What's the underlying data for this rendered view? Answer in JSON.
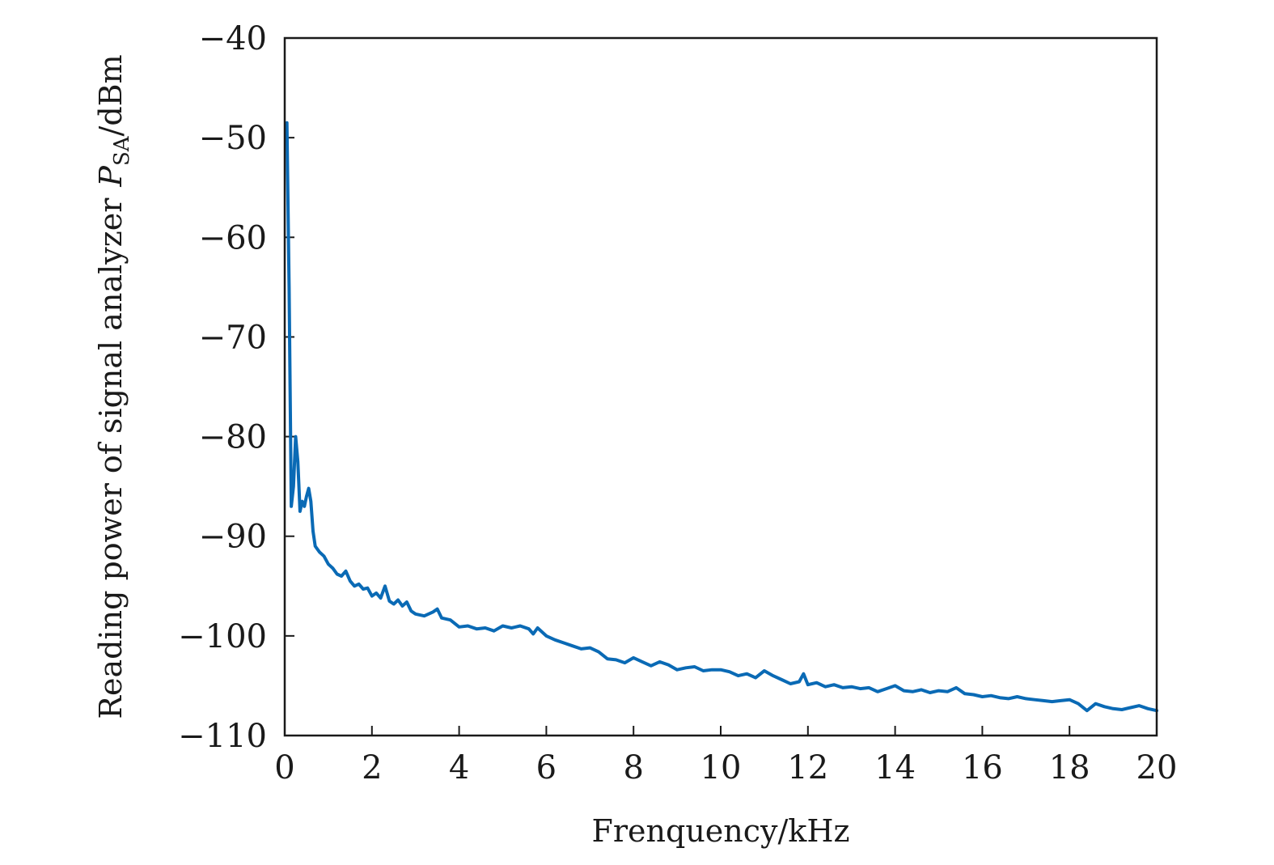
{
  "chart_data": {
    "type": "line",
    "title": "",
    "xlabel": "Frenquency/kHz",
    "ylabel": {
      "prefix": "Reading power of signal analyzer",
      "symbol": "P",
      "subscript": "SA",
      "unit": "/dBm"
    },
    "xlim": [
      0,
      20
    ],
    "ylim": [
      -110,
      -40
    ],
    "xticks": [
      0,
      2,
      4,
      6,
      8,
      10,
      12,
      14,
      16,
      18,
      20
    ],
    "yticks": [
      -40,
      -50,
      -60,
      -70,
      -80,
      -90,
      -100,
      -110
    ],
    "xtick_labels": [
      "0",
      "2",
      "4",
      "6",
      "8",
      "10",
      "12",
      "14",
      "16",
      "18",
      "20"
    ],
    "ytick_labels": [
      "−40",
      "−50",
      "−60",
      "−70",
      "−80",
      "−90",
      "−100",
      "−110"
    ],
    "grid": false,
    "series": [
      {
        "color": "#0a6ab5",
        "x": [
          0.05,
          0.1,
          0.15,
          0.2,
          0.25,
          0.3,
          0.35,
          0.4,
          0.45,
          0.5,
          0.55,
          0.6,
          0.65,
          0.7,
          0.8,
          0.9,
          1.0,
          1.1,
          1.2,
          1.3,
          1.4,
          1.5,
          1.6,
          1.7,
          1.8,
          1.9,
          2.0,
          2.1,
          2.2,
          2.3,
          2.4,
          2.5,
          2.6,
          2.7,
          2.8,
          2.9,
          3.0,
          3.2,
          3.4,
          3.5,
          3.6,
          3.8,
          4.0,
          4.2,
          4.4,
          4.6,
          4.8,
          5.0,
          5.2,
          5.4,
          5.6,
          5.7,
          5.8,
          6.0,
          6.2,
          6.4,
          6.6,
          6.8,
          7.0,
          7.2,
          7.4,
          7.6,
          7.8,
          8.0,
          8.2,
          8.4,
          8.6,
          8.8,
          9.0,
          9.2,
          9.4,
          9.6,
          9.8,
          10.0,
          10.2,
          10.4,
          10.6,
          10.8,
          11.0,
          11.2,
          11.4,
          11.6,
          11.8,
          11.9,
          12.0,
          12.2,
          12.4,
          12.6,
          12.8,
          13.0,
          13.2,
          13.4,
          13.6,
          13.8,
          14.0,
          14.2,
          14.4,
          14.6,
          14.8,
          15.0,
          15.2,
          15.4,
          15.6,
          15.8,
          16.0,
          16.2,
          16.4,
          16.6,
          16.8,
          17.0,
          17.2,
          17.4,
          17.6,
          17.8,
          18.0,
          18.2,
          18.4,
          18.6,
          18.8,
          19.0,
          19.2,
          19.4,
          19.6,
          19.8,
          20.0
        ],
        "y": [
          -48.5,
          -65.0,
          -87.0,
          -85.0,
          -80.0,
          -82.5,
          -87.5,
          -86.5,
          -87.0,
          -86.0,
          -85.2,
          -86.5,
          -89.5,
          -91.0,
          -91.6,
          -92.0,
          -92.8,
          -93.2,
          -93.8,
          -94.0,
          -93.5,
          -94.5,
          -95.0,
          -94.8,
          -95.3,
          -95.2,
          -96.0,
          -95.7,
          -96.2,
          -95.0,
          -96.5,
          -96.8,
          -96.4,
          -97.0,
          -96.6,
          -97.5,
          -97.8,
          -98.0,
          -97.6,
          -97.3,
          -98.2,
          -98.4,
          -99.1,
          -99.0,
          -99.3,
          -99.2,
          -99.5,
          -99.0,
          -99.2,
          -99.0,
          -99.3,
          -99.8,
          -99.2,
          -100.0,
          -100.4,
          -100.7,
          -101.0,
          -101.3,
          -101.2,
          -101.6,
          -102.3,
          -102.4,
          -102.7,
          -102.2,
          -102.6,
          -103.0,
          -102.6,
          -102.9,
          -103.4,
          -103.2,
          -103.1,
          -103.5,
          -103.4,
          -103.4,
          -103.6,
          -104.0,
          -103.8,
          -104.2,
          -103.5,
          -104.0,
          -104.4,
          -104.8,
          -104.6,
          -103.8,
          -104.9,
          -104.7,
          -105.1,
          -104.9,
          -105.2,
          -105.1,
          -105.3,
          -105.2,
          -105.6,
          -105.3,
          -105.0,
          -105.5,
          -105.6,
          -105.4,
          -105.7,
          -105.5,
          -105.6,
          -105.2,
          -105.8,
          -105.9,
          -106.1,
          -106.0,
          -106.2,
          -106.3,
          -106.1,
          -106.3,
          -106.4,
          -106.5,
          -106.6,
          -106.5,
          -106.4,
          -106.8,
          -107.5,
          -106.8,
          -107.1,
          -107.3,
          -107.4,
          -107.2,
          -107.0,
          -107.3,
          -107.5
        ]
      }
    ]
  }
}
